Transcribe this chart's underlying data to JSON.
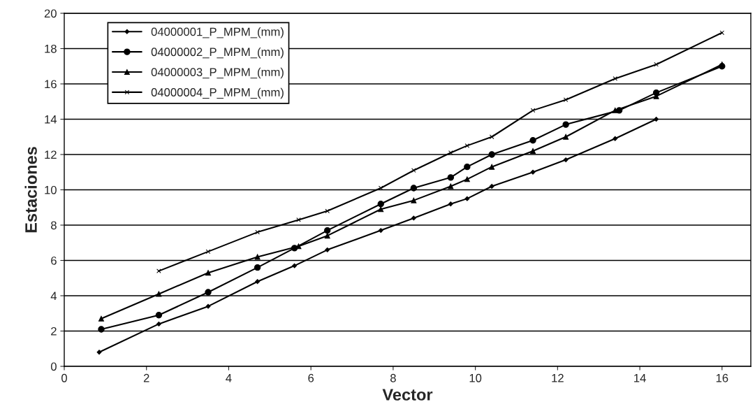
{
  "chart_data": {
    "type": "line",
    "xlabel": "Vector",
    "ylabel": "Estaciones",
    "xlim": [
      0,
      16.7
    ],
    "xticks": [
      0,
      2,
      4,
      6,
      8,
      10,
      12,
      14,
      16
    ],
    "ylim": [
      0,
      20
    ],
    "yticks": [
      0,
      2,
      4,
      6,
      8,
      10,
      12,
      14,
      16,
      18,
      20
    ],
    "grid": "y",
    "legend": "top left",
    "series": [
      {
        "name": "04000001_P_MPM_(mm)",
        "color": "#000000",
        "marker": "diamond",
        "x": [
          0.85,
          2.3,
          3.5,
          4.7,
          5.6,
          6.4,
          7.7,
          8.5,
          9.4,
          9.8,
          10.4,
          11.4,
          12.2,
          13.4,
          14.4
        ],
        "values": [
          0.8,
          2.4,
          3.4,
          4.8,
          5.7,
          6.6,
          7.7,
          8.4,
          9.2,
          9.5,
          10.2,
          11.0,
          11.7,
          12.9,
          14.0
        ]
      },
      {
        "name": "04000002_P_MPM_(mm)",
        "color": "#000000",
        "marker": "circle",
        "x": [
          0.9,
          2.3,
          3.5,
          4.7,
          5.6,
          6.4,
          7.7,
          8.5,
          9.4,
          9.8,
          10.4,
          11.4,
          12.2,
          13.5,
          14.4,
          16.0
        ],
        "values": [
          2.1,
          2.9,
          4.2,
          5.6,
          6.7,
          7.7,
          9.2,
          10.1,
          10.7,
          11.3,
          12.0,
          12.8,
          13.7,
          14.5,
          15.5,
          17.0
        ]
      },
      {
        "name": "04000003_P_MPM_(mm)",
        "color": "#000000",
        "marker": "triangle",
        "x": [
          0.9,
          2.3,
          3.5,
          4.7,
          5.7,
          6.4,
          7.7,
          8.5,
          9.4,
          9.8,
          10.4,
          11.4,
          12.2,
          13.4,
          14.4,
          16.0
        ],
        "values": [
          2.7,
          4.1,
          5.3,
          6.2,
          6.8,
          7.4,
          8.9,
          9.4,
          10.2,
          10.6,
          11.3,
          12.2,
          13.0,
          14.5,
          15.3,
          17.1
        ]
      },
      {
        "name": "04000004_P_MPM_(mm)",
        "color": "#000000",
        "marker": "cross",
        "x": [
          2.3,
          3.5,
          4.7,
          5.7,
          6.4,
          7.7,
          8.5,
          9.4,
          9.8,
          10.4,
          11.4,
          12.2,
          13.4,
          14.4,
          16.0
        ],
        "values": [
          5.4,
          6.5,
          7.6,
          8.3,
          8.8,
          10.1,
          11.1,
          12.1,
          12.5,
          13.0,
          14.5,
          15.1,
          16.3,
          17.1,
          18.9
        ]
      }
    ]
  }
}
